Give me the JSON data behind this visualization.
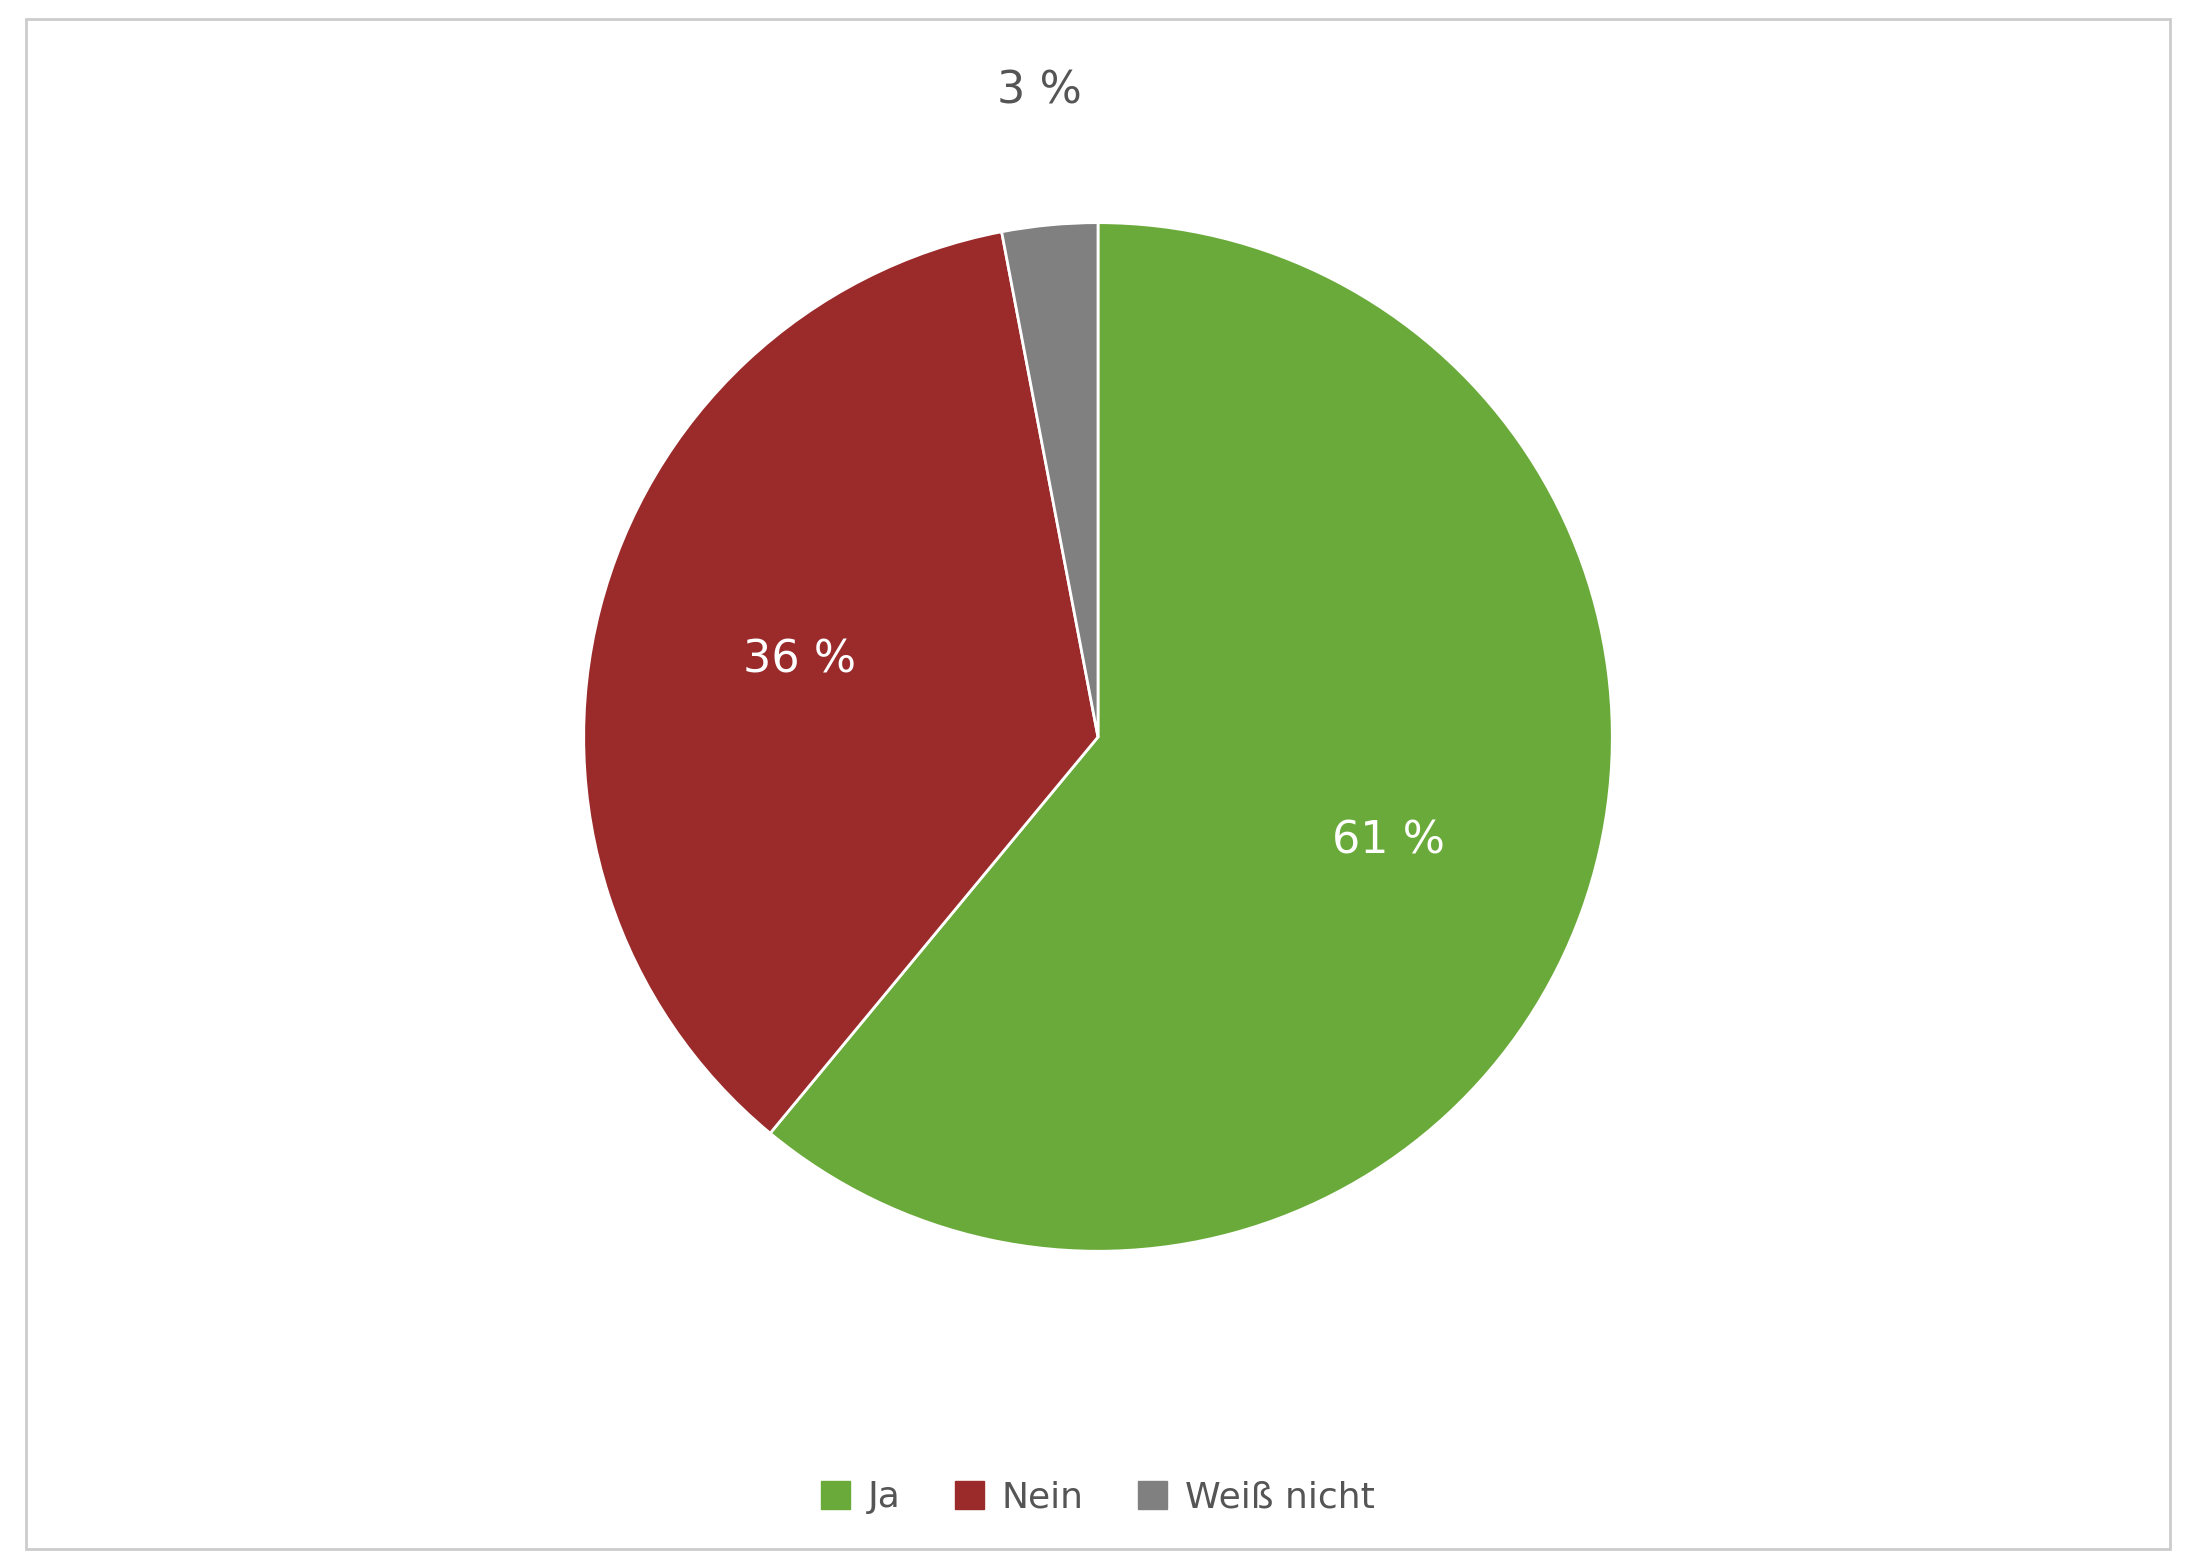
{
  "slices": [
    61,
    36,
    3
  ],
  "labels": [
    "Ja",
    "Nein",
    "Weiß nicht"
  ],
  "colors": [
    "#6aaa3a",
    "#9b2b2b",
    "#808080"
  ],
  "autopct_labels": [
    "61 %",
    "36 %",
    "3 %"
  ],
  "autopct_colors": [
    "white",
    "white",
    "#555555"
  ],
  "startangle": 90,
  "legend_labels": [
    "Ja",
    "Nein",
    "Weiß nicht"
  ],
  "background_color": "#ffffff",
  "label_fontsize": 32,
  "legend_fontsize": 26,
  "border_color": "#cccccc"
}
